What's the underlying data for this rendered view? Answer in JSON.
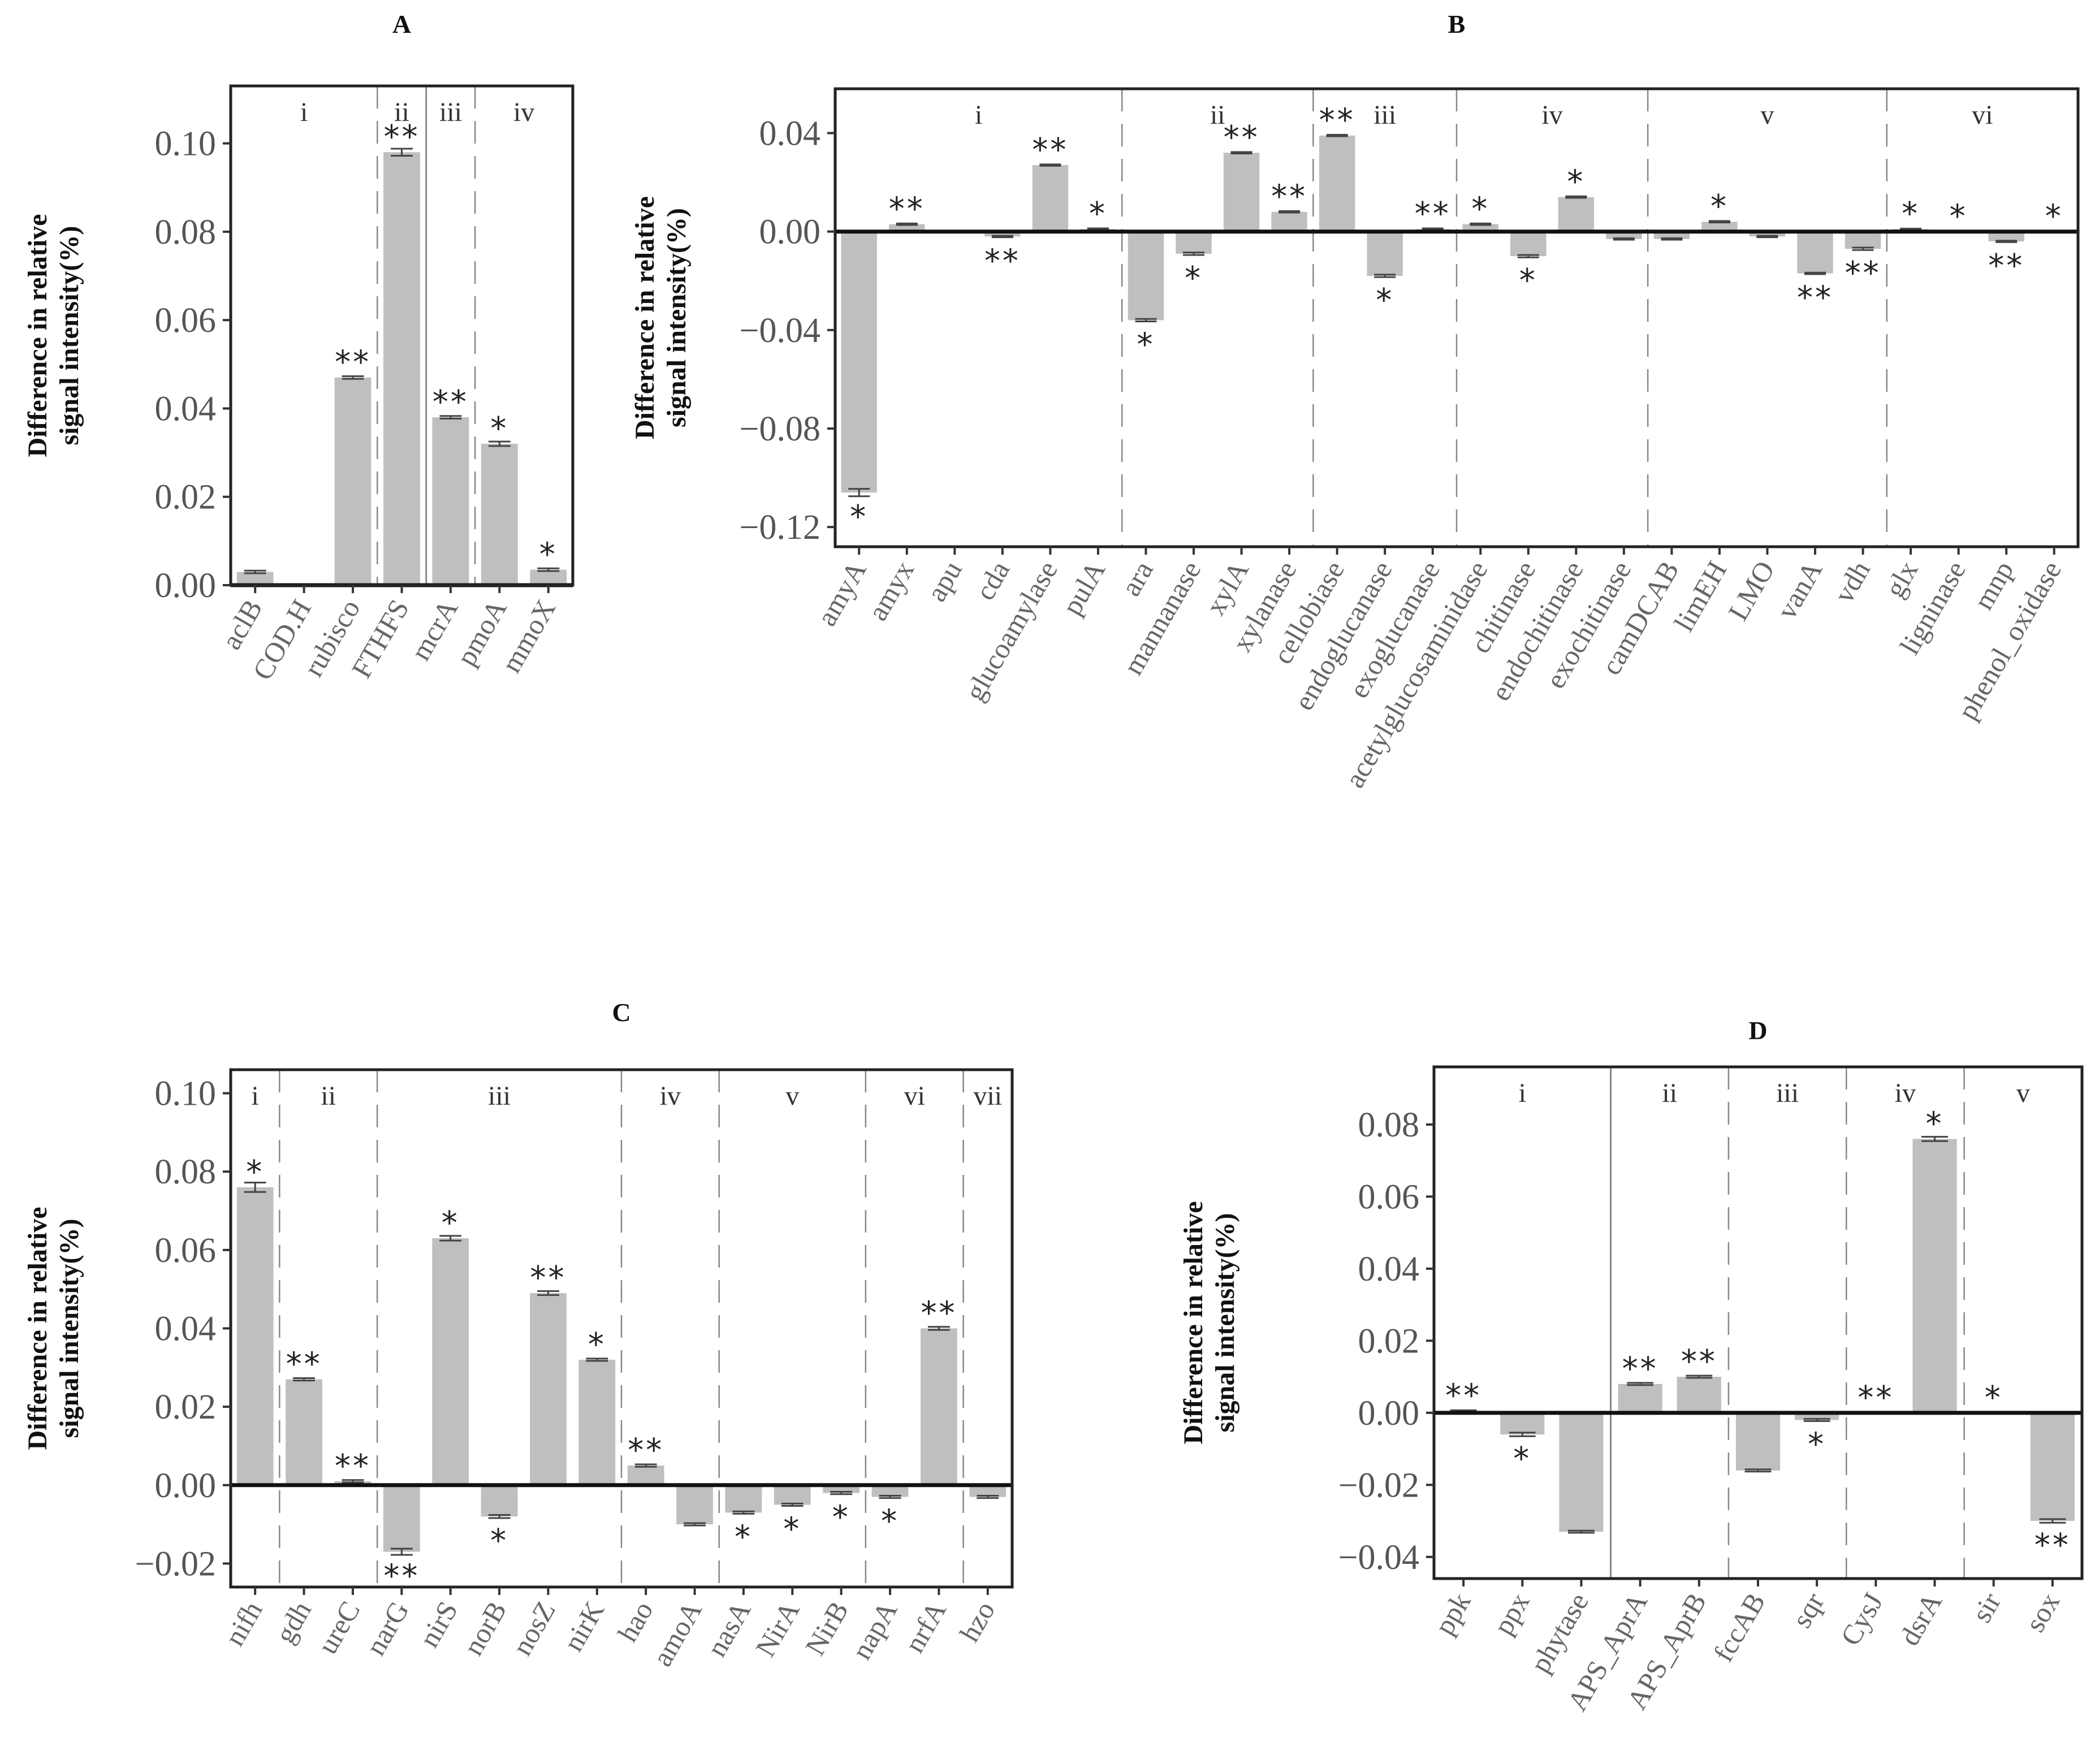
{
  "chart_data": [
    {
      "panel": "A",
      "type": "bar",
      "title": "A",
      "ylabel": [
        "Difference in relative",
        "signal intensity(%)"
      ],
      "ylim": [
        0,
        0.113
      ],
      "yticks": [
        0.0,
        0.02,
        0.04,
        0.06,
        0.08,
        0.1
      ],
      "ytick_labels": [
        "0.00",
        "0.02",
        "0.04",
        "0.06",
        "0.08",
        "0.10"
      ],
      "categories": [
        "aclB",
        "COD.H",
        "rubisco",
        "FTHFS",
        "mcrA",
        "pmoA",
        "mmoX"
      ],
      "values": [
        0.003,
        0.0,
        0.047,
        0.098,
        0.038,
        0.032,
        0.0035
      ],
      "errors": [
        0.0003,
        0,
        0.0003,
        0.0008,
        0.0003,
        0.0005,
        0.0003
      ],
      "significance": [
        "",
        "",
        "**",
        "**",
        "**",
        "*",
        "*"
      ],
      "groups": [
        {
          "label": "i",
          "start": 0,
          "end": 2
        },
        {
          "label": "ii",
          "start": 3,
          "end": 3
        },
        {
          "label": "iii",
          "start": 4,
          "end": 4
        },
        {
          "label": "iv",
          "start": 5,
          "end": 6
        }
      ],
      "separator_style": [
        "dash",
        "solid",
        "dash"
      ]
    },
    {
      "panel": "B",
      "type": "bar",
      "title": "B",
      "ylabel": [
        "Difference in relative",
        "signal intensity(%)"
      ],
      "ylim": [
        -0.128,
        0.058
      ],
      "yticks": [
        -0.12,
        -0.08,
        -0.04,
        0.0,
        0.04
      ],
      "ytick_labels": [
        "−0.12",
        "−0.08",
        "−0.04",
        "0.00",
        "0.04"
      ],
      "categories": [
        "amyA",
        "amyx",
        "apu",
        "cda",
        "glucoamylase",
        "pulA",
        "ara",
        "mannanase",
        "xylA",
        "xylanase",
        "cellobiase",
        "endoglucanase",
        "exoglucanase",
        "acetylglucosaminidase",
        "chitinase",
        "endochitinase",
        "exochitinase",
        "camDCAB",
        "limEH",
        "LMO",
        "vanA",
        "vdh",
        "glx",
        "ligninase",
        "mnp",
        "phenol_oxidase"
      ],
      "values": [
        -0.106,
        0.003,
        0.0,
        -0.002,
        0.027,
        0.001,
        -0.036,
        -0.009,
        0.032,
        0.008,
        0.039,
        -0.018,
        0.001,
        0.003,
        -0.01,
        0.014,
        -0.003,
        -0.003,
        0.004,
        -0.002,
        -0.017,
        -0.007,
        0.001,
        0.0,
        -0.004,
        0.0
      ],
      "errors": [
        0.0015,
        0.0003,
        0,
        0.0003,
        0.0003,
        0.0003,
        0.0005,
        0.0005,
        0.0003,
        0.0003,
        0.0003,
        0.0005,
        0.0003,
        0.0003,
        0.0005,
        0.0003,
        0.0003,
        0.0003,
        0.0003,
        0.0003,
        0.0003,
        0.0005,
        0.0002,
        0,
        0.0003,
        0
      ],
      "significance": [
        "*",
        "**",
        "",
        "**",
        "**",
        "*",
        "*",
        "*",
        "**",
        "**",
        "**",
        "*",
        "**",
        "*",
        "*",
        "*",
        "",
        "",
        "*",
        "",
        "**",
        "**",
        "*",
        "*",
        "**",
        "*"
      ],
      "groups": [
        {
          "label": "i",
          "start": 0,
          "end": 5
        },
        {
          "label": "ii",
          "start": 6,
          "end": 9
        },
        {
          "label": "iii",
          "start": 10,
          "end": 12
        },
        {
          "label": "iv",
          "start": 13,
          "end": 16
        },
        {
          "label": "v",
          "start": 17,
          "end": 21
        },
        {
          "label": "vi",
          "start": 22,
          "end": 25
        }
      ],
      "separator_style": [
        "dash",
        "dash",
        "dash",
        "dash",
        "dash"
      ]
    },
    {
      "panel": "C",
      "type": "bar",
      "title": "C",
      "ylabel": [
        "Difference in relative",
        "signal intensity(%)"
      ],
      "ylim": [
        -0.026,
        0.106
      ],
      "yticks": [
        -0.02,
        0.0,
        0.02,
        0.04,
        0.06,
        0.08,
        0.1
      ],
      "ytick_labels": [
        "−0.02",
        "0.00",
        "0.02",
        "0.04",
        "0.06",
        "0.08",
        "0.10"
      ],
      "categories": [
        "nifh",
        "gdh",
        "ureC",
        "narG",
        "nirS",
        "norB",
        "nosZ",
        "nirK",
        "hao",
        "amoA",
        "nasA",
        "NirA",
        "NirB",
        "napA",
        "nrfA",
        "hzo"
      ],
      "values": [
        0.076,
        0.027,
        0.001,
        -0.017,
        0.063,
        -0.008,
        0.049,
        0.032,
        0.005,
        -0.01,
        -0.007,
        -0.005,
        -0.002,
        -0.003,
        0.04,
        -0.003
      ],
      "errors": [
        0.0012,
        0.0003,
        0.0003,
        0.0008,
        0.0006,
        0.0004,
        0.0005,
        0.0003,
        0.0003,
        0.0003,
        0.0003,
        0.0003,
        0.0003,
        0.0003,
        0.0004,
        0.0003
      ],
      "significance": [
        "*",
        "**",
        "**",
        "**",
        "*",
        "*",
        "**",
        "*",
        "**",
        "",
        "*",
        "*",
        "*",
        "*",
        "**",
        ""
      ],
      "groups": [
        {
          "label": "i",
          "start": 0,
          "end": 0
        },
        {
          "label": "ii",
          "start": 1,
          "end": 2
        },
        {
          "label": "iii",
          "start": 3,
          "end": 7
        },
        {
          "label": "iv",
          "start": 8,
          "end": 9
        },
        {
          "label": "v",
          "start": 10,
          "end": 12
        },
        {
          "label": "vi",
          "start": 13,
          "end": 14
        },
        {
          "label": "vii",
          "start": 15,
          "end": 15
        }
      ],
      "separator_style": [
        "dash",
        "dash",
        "dash",
        "dash",
        "dash",
        "dash"
      ]
    },
    {
      "panel": "D",
      "type": "bar",
      "title": "D",
      "ylabel": [
        "Difference in relative",
        "signal intensity(%)"
      ],
      "ylim": [
        -0.046,
        0.096
      ],
      "yticks": [
        -0.04,
        -0.02,
        0.0,
        0.02,
        0.04,
        0.06,
        0.08
      ],
      "ytick_labels": [
        "−0.04",
        "−0.02",
        "0.00",
        "0.02",
        "0.04",
        "0.06",
        "0.08"
      ],
      "categories": [
        "ppk",
        "ppx",
        "phytase",
        "APS_AprA",
        "APS_AprB",
        "fccAB",
        "sqr",
        "CysJ",
        "dsrA",
        "sir",
        "sox"
      ],
      "values": [
        0.0005,
        -0.006,
        -0.033,
        0.008,
        0.01,
        -0.016,
        -0.002,
        0.0,
        0.076,
        0.0,
        -0.03
      ],
      "errors": [
        0.0002,
        0.0005,
        0.0003,
        0.0003,
        0.0003,
        0.0003,
        0.0003,
        0,
        0.0006,
        0,
        0.0005
      ],
      "significance": [
        "**",
        "*",
        "",
        "**",
        "**",
        "",
        "*",
        "**",
        "*",
        "*",
        "**"
      ],
      "groups": [
        {
          "label": "i",
          "start": 0,
          "end": 2
        },
        {
          "label": "ii",
          "start": 3,
          "end": 4
        },
        {
          "label": "iii",
          "start": 5,
          "end": 6
        },
        {
          "label": "iv",
          "start": 7,
          "end": 8
        },
        {
          "label": "v",
          "start": 9,
          "end": 10
        }
      ],
      "separator_style": [
        "solid",
        "dash",
        "dash",
        "dash"
      ]
    }
  ]
}
